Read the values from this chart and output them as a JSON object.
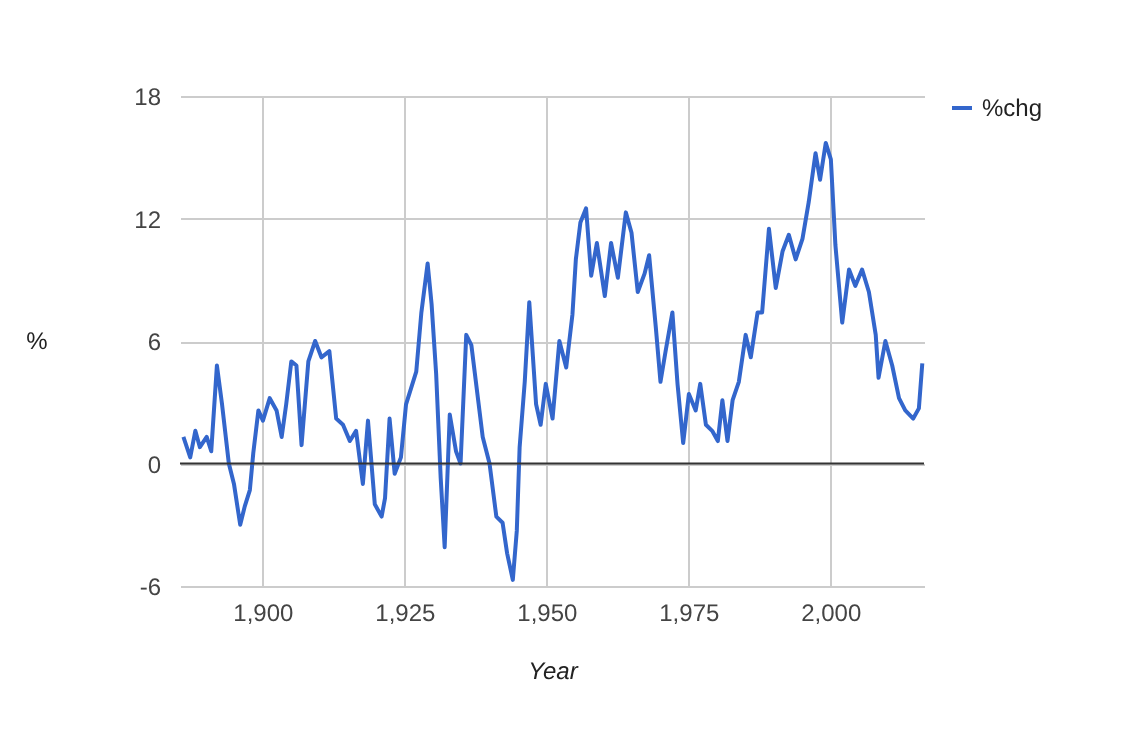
{
  "chart_data": {
    "type": "line",
    "xlabel": "Year",
    "ylabel": "%",
    "x": [
      1886.1,
      1887.3,
      1888.2,
      1889.0,
      1890.2,
      1891.0,
      1892.0,
      1892.9,
      1894.1,
      1895.0,
      1896.1,
      1896.9,
      1897.8,
      1898.4,
      1899.3,
      1900.1,
      1901.3,
      1902.5,
      1903.4,
      1904.2,
      1905.1,
      1906.0,
      1906.9,
      1908.1,
      1909.3,
      1910.4,
      1911.8,
      1913.0,
      1914.2,
      1915.4,
      1916.5,
      1917.7,
      1918.6,
      1919.8,
      1921.0,
      1921.6,
      1922.4,
      1923.3,
      1924.4,
      1925.3,
      1927.1,
      1928.0,
      1929.1,
      1929.8,
      1930.6,
      1931.4,
      1932.1,
      1933.0,
      1934.1,
      1934.9,
      1935.9,
      1936.8,
      1938.0,
      1938.8,
      1940.0,
      1941.2,
      1942.3,
      1943.1,
      1944.1,
      1944.8,
      1945.3,
      1946.2,
      1947.0,
      1948.2,
      1949.0,
      1949.9,
      1951.1,
      1952.3,
      1953.5,
      1954.6,
      1955.2,
      1956.0,
      1957.0,
      1957.9,
      1958.9,
      1960.3,
      1961.4,
      1962.6,
      1964.0,
      1965.0,
      1966.1,
      1967.3,
      1968.1,
      1969.3,
      1970.1,
      1971.0,
      1972.2,
      1973.1,
      1974.1,
      1975.1,
      1976.3,
      1977.1,
      1978.1,
      1979.2,
      1980.2,
      1981.0,
      1981.9,
      1982.8,
      1983.9,
      1985.1,
      1986.0,
      1987.2,
      1988.0,
      1989.2,
      1990.4,
      1991.6,
      1992.7,
      1993.9,
      1995.1,
      1996.2,
      1997.4,
      1998.2,
      1999.2,
      2000.1,
      2000.9,
      2002.1,
      2003.3,
      2004.4,
      2005.6,
      2006.8,
      2008.0,
      2008.5,
      2009.7,
      2010.9,
      2012.1,
      2013.2,
      2014.6,
      2015.6,
      2016.2
    ],
    "series": [
      {
        "name": "%chg",
        "color": "#3366cc",
        "values": [
          1.3,
          0.3,
          1.6,
          0.8,
          1.3,
          0.6,
          4.8,
          2.9,
          0,
          -1.0,
          -3.0,
          -2.1,
          -1.3,
          0.5,
          2.6,
          2.1,
          3.2,
          2.6,
          1.3,
          2.9,
          5.0,
          4.8,
          0.9,
          5.0,
          6.0,
          5.2,
          5.5,
          2.2,
          1.9,
          1.1,
          1.6,
          -1.0,
          2.1,
          -2.0,
          -2.6,
          -1.7,
          2.2,
          -0.5,
          0.3,
          2.9,
          4.5,
          7.4,
          9.8,
          7.8,
          4.4,
          -0.7,
          -4.1,
          2.4,
          0.6,
          0,
          6.3,
          5.8,
          3.1,
          1.3,
          0,
          -2.6,
          -2.9,
          -4.4,
          -5.7,
          -3.3,
          0.8,
          4.0,
          7.9,
          2.9,
          1.9,
          3.9,
          2.2,
          6.0,
          4.7,
          7.3,
          10.0,
          11.8,
          12.5,
          9.2,
          10.8,
          8.2,
          10.8,
          9.1,
          12.3,
          11.3,
          8.4,
          9.3,
          10.2,
          6.6,
          4.0,
          5.5,
          7.4,
          3.9,
          1.0,
          3.4,
          2.6,
          3.9,
          1.9,
          1.6,
          1.1,
          3.1,
          1.1,
          3.1,
          4.0,
          6.3,
          5.2,
          7.4,
          7.4,
          11.5,
          8.6,
          10.4,
          11.2,
          10.0,
          11.0,
          12.8,
          15.2,
          13.9,
          15.7,
          14.9,
          10.7,
          6.9,
          9.5,
          8.7,
          9.5,
          8.4,
          6.3,
          4.2,
          6.0,
          4.8,
          3.2,
          2.6,
          2.2,
          2.7,
          4.9
        ]
      }
    ],
    "xlim": [
      1885.5,
      2016.5
    ],
    "xticks": [
      {
        "value": 1900,
        "label": "1,900"
      },
      {
        "value": 1925,
        "label": "1,925"
      },
      {
        "value": 1950,
        "label": "1,950"
      },
      {
        "value": 1975,
        "label": "1,975"
      },
      {
        "value": 2000,
        "label": "2,000"
      }
    ],
    "ylim": [
      -6,
      18
    ],
    "yticks": [
      -6,
      0,
      6,
      12,
      18
    ],
    "ref_lines": [
      {
        "axis": "y",
        "value": 0,
        "color": "#333333"
      }
    ],
    "grid": true,
    "legend": "top right",
    "marker": "none",
    "line_style": "solid"
  }
}
